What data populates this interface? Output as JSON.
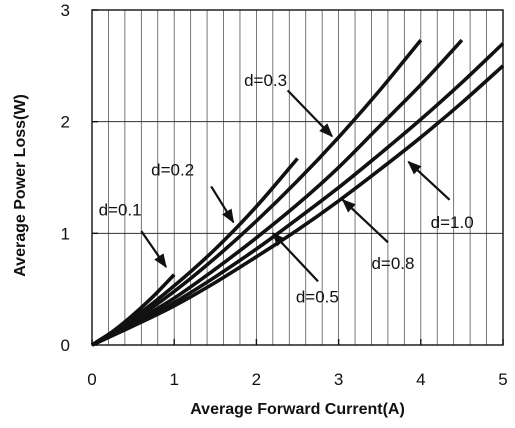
{
  "chart_data": {
    "type": "line",
    "title": "",
    "xlabel": "Average Forward Current(A)",
    "ylabel": "Average Power Loss(W)",
    "xlim": [
      0,
      5
    ],
    "ylim": [
      0,
      3
    ],
    "x_ticks": [
      "0",
      "1",
      "2",
      "3",
      "4",
      "5"
    ],
    "y_ticks": [
      "0",
      "1",
      "2",
      "3"
    ],
    "grid": {
      "major_y": true,
      "minor_x_step": 0.2
    },
    "series": [
      {
        "name": "d=0.1",
        "x": [
          0,
          0.25,
          0.5,
          0.75,
          1.0
        ],
        "y": [
          0,
          0.12,
          0.27,
          0.44,
          0.63
        ]
      },
      {
        "name": "d=0.2",
        "x": [
          0,
          0.5,
          1.0,
          1.5,
          2.0,
          2.5
        ],
        "y": [
          0,
          0.24,
          0.53,
          0.86,
          1.24,
          1.67
        ]
      },
      {
        "name": "d=0.3",
        "x": [
          0,
          0.5,
          1.0,
          1.5,
          2.0,
          2.5,
          3.0,
          3.5,
          4.0
        ],
        "y": [
          0,
          0.22,
          0.48,
          0.78,
          1.11,
          1.47,
          1.86,
          2.28,
          2.73
        ]
      },
      {
        "name": "d=0.5",
        "x": [
          0,
          0.5,
          1.0,
          1.5,
          2.0,
          2.5,
          3.0,
          3.5,
          4.0,
          4.5
        ],
        "y": [
          0,
          0.2,
          0.42,
          0.68,
          0.96,
          1.26,
          1.59,
          1.96,
          2.33,
          2.73
        ]
      },
      {
        "name": "d=0.8",
        "x": [
          0,
          0.5,
          1.0,
          1.5,
          2.0,
          2.5,
          3.0,
          3.5,
          4.0,
          4.5,
          5.0
        ],
        "y": [
          0,
          0.18,
          0.38,
          0.61,
          0.86,
          1.13,
          1.41,
          1.71,
          2.02,
          2.35,
          2.7
        ]
      },
      {
        "name": "d=1.0",
        "x": [
          0,
          0.5,
          1.0,
          1.5,
          2.0,
          2.5,
          3.0,
          3.5,
          4.0,
          4.5,
          5.0
        ],
        "y": [
          0,
          0.17,
          0.35,
          0.56,
          0.79,
          1.03,
          1.29,
          1.57,
          1.86,
          2.17,
          2.5
        ]
      }
    ],
    "annotations": [
      {
        "series": "d=0.1",
        "text": "d=0.1",
        "label_at": [
          0.08,
          1.16
        ],
        "arrow_from": [
          0.6,
          1.02
        ],
        "arrow_to": [
          0.9,
          0.7
        ]
      },
      {
        "series": "d=0.2",
        "text": "d=0.2",
        "label_at": [
          0.72,
          1.52
        ],
        "arrow_from": [
          1.45,
          1.42
        ],
        "arrow_to": [
          1.72,
          1.1
        ]
      },
      {
        "series": "d=0.3",
        "text": "d=0.3",
        "label_at": [
          1.85,
          2.32
        ],
        "arrow_from": [
          2.38,
          2.28
        ],
        "arrow_to": [
          2.92,
          1.87
        ]
      },
      {
        "series": "d=0.5",
        "text": "d=0.5",
        "label_at": [
          2.48,
          0.38
        ],
        "arrow_from": [
          2.75,
          0.57
        ],
        "arrow_to": [
          2.2,
          1.0
        ]
      },
      {
        "series": "d=0.8",
        "text": "d=0.8",
        "label_at": [
          3.4,
          0.68
        ],
        "arrow_from": [
          3.6,
          0.92
        ],
        "arrow_to": [
          3.05,
          1.3
        ]
      },
      {
        "series": "d=1.0",
        "text": "d=1.0",
        "label_at": [
          4.12,
          1.05
        ],
        "arrow_from": [
          4.35,
          1.3
        ],
        "arrow_to": [
          3.85,
          1.64
        ]
      }
    ]
  }
}
